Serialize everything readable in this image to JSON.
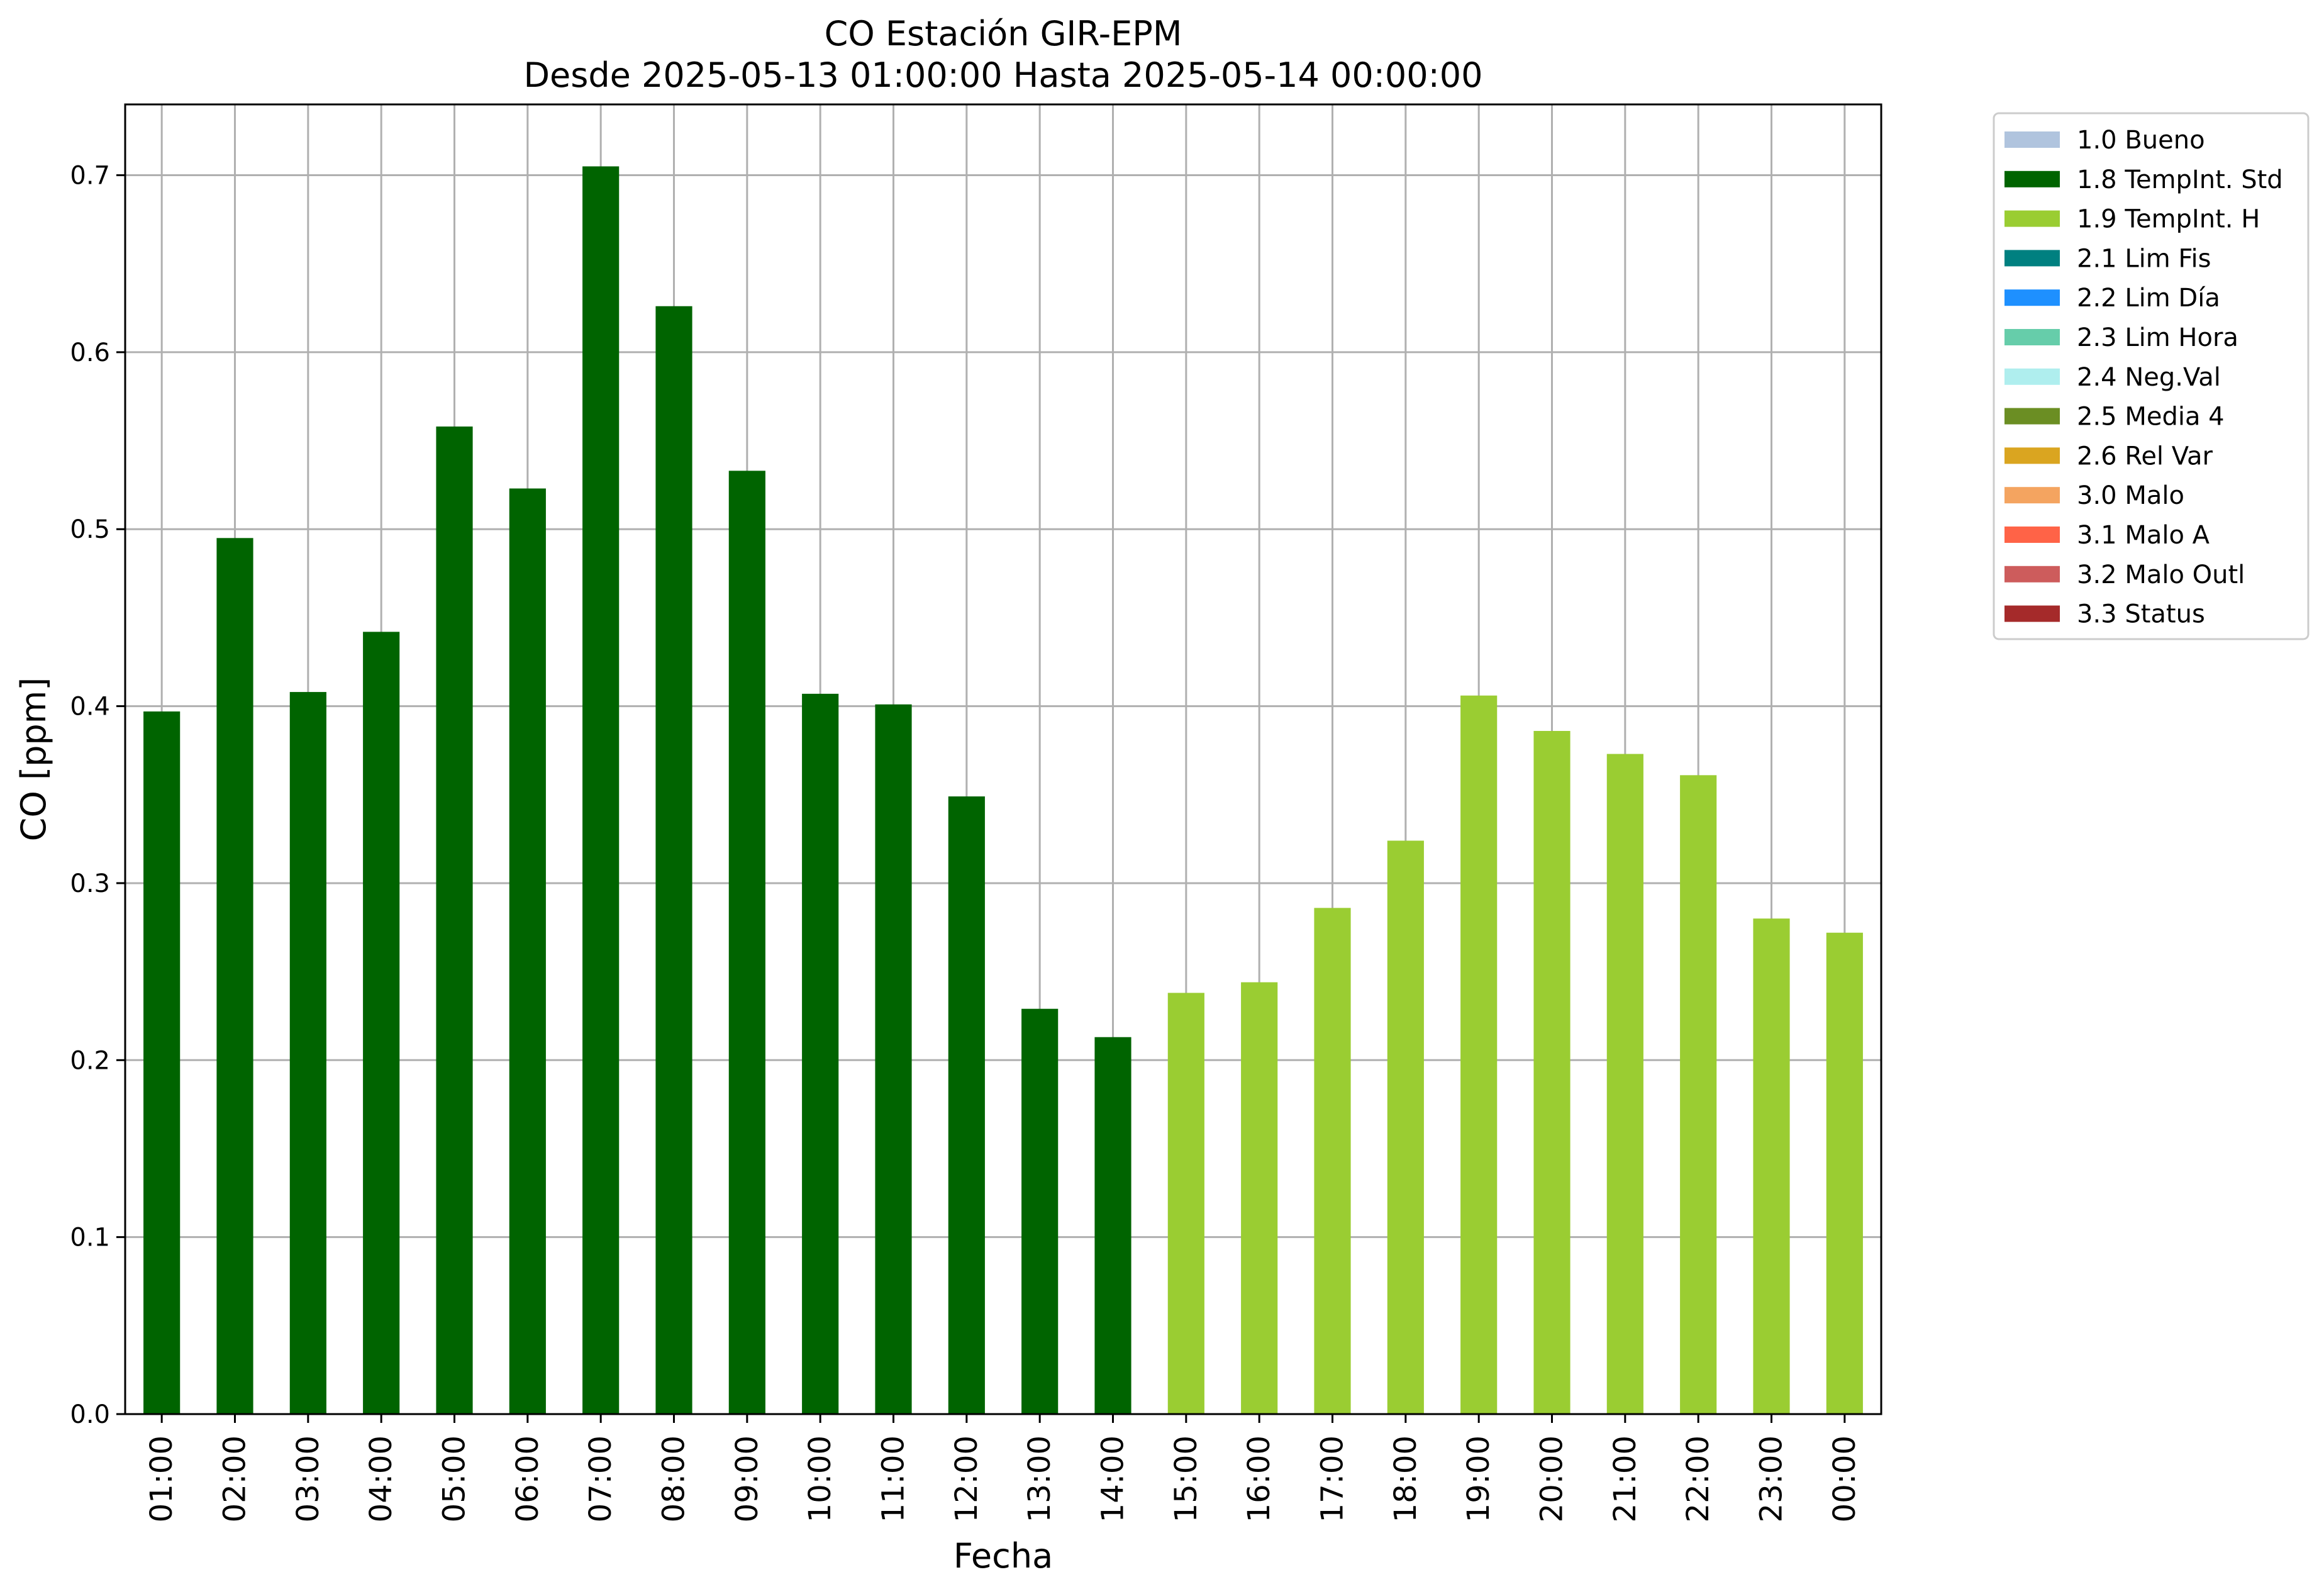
{
  "chart_data": {
    "type": "bar",
    "title": "CO Estación GIR-EPM",
    "subtitle": "Desde 2025-05-13 01:00:00 Hasta 2025-05-14 00:00:00",
    "xlabel": "Fecha",
    "ylabel": "CO [ppm]",
    "ylim": [
      0,
      0.74
    ],
    "yticks": [
      0.0,
      0.1,
      0.2,
      0.3,
      0.4,
      0.5,
      0.6,
      0.7
    ],
    "ytick_labels": [
      "0.0",
      "0.1",
      "0.2",
      "0.3",
      "0.4",
      "0.5",
      "0.6",
      "0.7"
    ],
    "grid": true,
    "legend_position": "outside-right-top",
    "categories": [
      "01:00",
      "02:00",
      "03:00",
      "04:00",
      "05:00",
      "06:00",
      "07:00",
      "08:00",
      "09:00",
      "10:00",
      "11:00",
      "12:00",
      "13:00",
      "14:00",
      "15:00",
      "16:00",
      "17:00",
      "18:00",
      "19:00",
      "20:00",
      "21:00",
      "22:00",
      "23:00",
      "00:00"
    ],
    "values": [
      0.397,
      0.495,
      0.408,
      0.442,
      0.558,
      0.523,
      0.705,
      0.626,
      0.533,
      0.407,
      0.401,
      0.349,
      0.229,
      0.213,
      0.238,
      0.244,
      0.286,
      0.324,
      0.406,
      0.386,
      0.373,
      0.361,
      0.28,
      0.272
    ],
    "flags": [
      "1.8 TempInt. Std",
      "1.8 TempInt. Std",
      "1.8 TempInt. Std",
      "1.8 TempInt. Std",
      "1.8 TempInt. Std",
      "1.8 TempInt. Std",
      "1.8 TempInt. Std",
      "1.8 TempInt. Std",
      "1.8 TempInt. Std",
      "1.8 TempInt. Std",
      "1.8 TempInt. Std",
      "1.8 TempInt. Std",
      "1.8 TempInt. Std",
      "1.8 TempInt. Std",
      "1.9 TempInt. H",
      "1.9 TempInt. H",
      "1.9 TempInt. H",
      "1.9 TempInt. H",
      "1.9 TempInt. H",
      "1.9 TempInt. H",
      "1.9 TempInt. H",
      "1.9 TempInt. H",
      "1.9 TempInt. H",
      "1.9 TempInt. H"
    ],
    "legend": [
      {
        "label": "1.0 Bueno",
        "color": "#b0c4de"
      },
      {
        "label": "1.8 TempInt. Std",
        "color": "#006400"
      },
      {
        "label": "1.9 TempInt. H",
        "color": "#9acd32"
      },
      {
        "label": "2.1 Lim Fis",
        "color": "#008080"
      },
      {
        "label": "2.2 Lim Día",
        "color": "#1e90ff"
      },
      {
        "label": "2.3 Lim Hora",
        "color": "#66cdaa"
      },
      {
        "label": "2.4 Neg.Val",
        "color": "#afeeee"
      },
      {
        "label": "2.5 Media 4",
        "color": "#6b8e23"
      },
      {
        "label": "2.6 Rel Var",
        "color": "#daa520"
      },
      {
        "label": "3.0 Malo",
        "color": "#f4a460"
      },
      {
        "label": "3.1 Malo A",
        "color": "#ff6347"
      },
      {
        "label": "3.2 Malo Outl",
        "color": "#cd5c5c"
      },
      {
        "label": "3.3 Status",
        "color": "#a52a2a"
      }
    ]
  }
}
